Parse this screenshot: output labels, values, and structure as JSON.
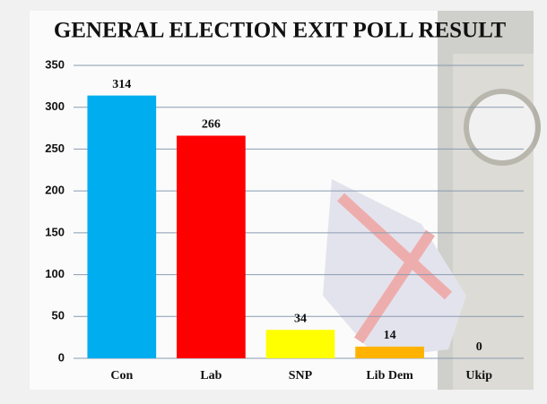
{
  "chart_data": {
    "type": "bar",
    "title": "GENERAL ELECTION EXIT POLL RESULT",
    "categories": [
      "Con",
      "Lab",
      "SNP",
      "Lib Dem",
      "Ukip"
    ],
    "values": [
      314,
      266,
      34,
      14,
      0
    ],
    "colors": [
      "#00aeef",
      "#ff0000",
      "#ffff00",
      "#ffb300",
      "#70147a"
    ],
    "ylim": [
      0,
      350
    ],
    "yticks": [
      0,
      50,
      100,
      150,
      200,
      250,
      300,
      350
    ],
    "grid": true
  }
}
